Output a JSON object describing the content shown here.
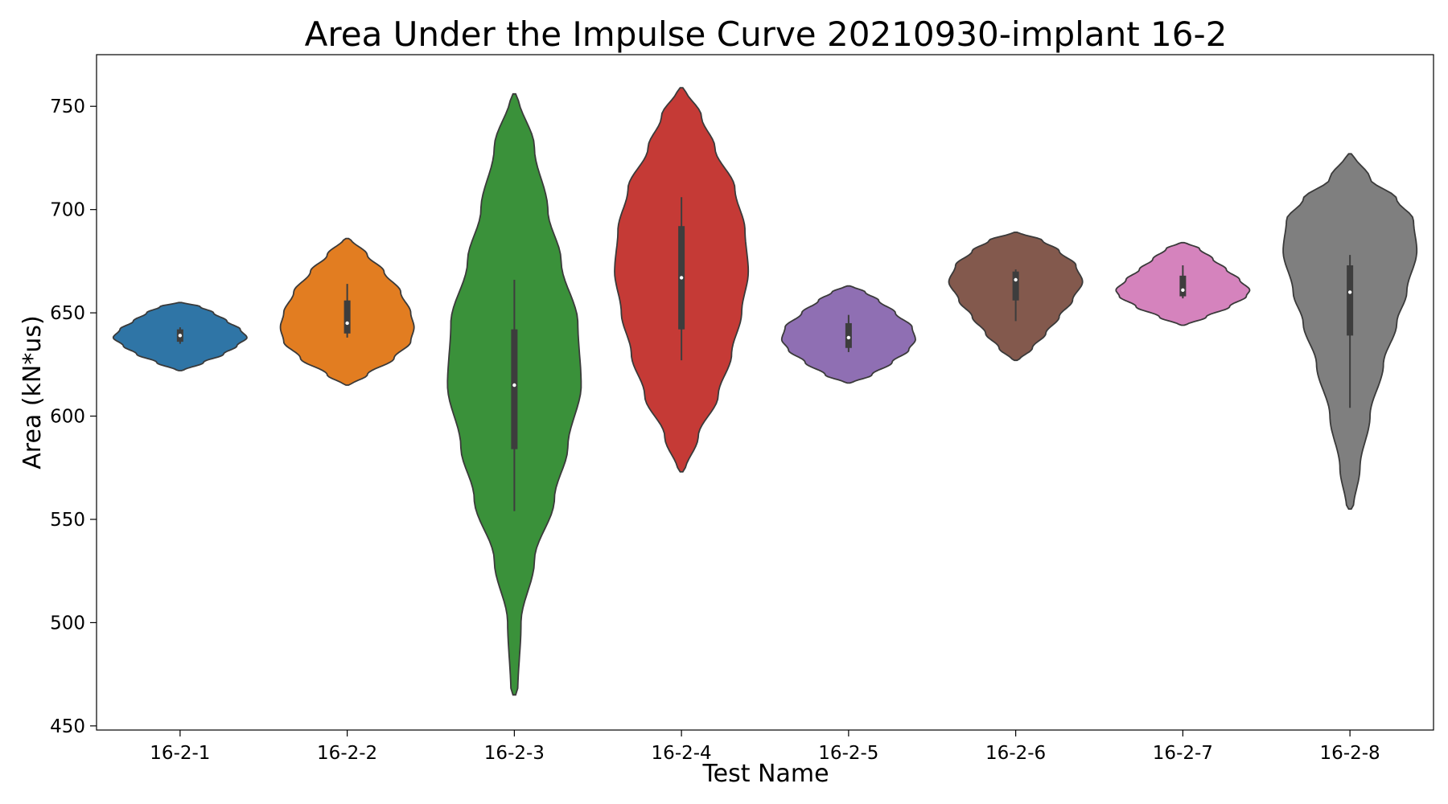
{
  "chart_data": {
    "type": "violin",
    "title": "Area Under the Impulse Curve 20210930-implant 16-2",
    "xlabel": "Test Name",
    "ylabel": "Area (kN*us)",
    "ylim": [
      448,
      775
    ],
    "yticks": [
      450,
      500,
      550,
      600,
      650,
      700,
      750
    ],
    "grid": false,
    "categories": [
      "16-2-1",
      "16-2-2",
      "16-2-3",
      "16-2-4",
      "16-2-5",
      "16-2-6",
      "16-2-7",
      "16-2-8"
    ],
    "series": [
      {
        "category": "16-2-1",
        "color": "#2f75a6",
        "min": 622,
        "max": 655,
        "q1": 636,
        "median": 639,
        "q3": 642,
        "whisker_low": 635,
        "whisker_high": 643,
        "profile": [
          [
            622,
            0.05
          ],
          [
            626,
            0.35
          ],
          [
            630,
            0.65
          ],
          [
            634,
            0.85
          ],
          [
            638,
            1.0
          ],
          [
            642,
            0.9
          ],
          [
            646,
            0.7
          ],
          [
            650,
            0.5
          ],
          [
            653,
            0.3
          ],
          [
            655,
            0.05
          ]
        ]
      },
      {
        "category": "16-2-2",
        "color": "#e27d21",
        "min": 615,
        "max": 686,
        "q1": 640,
        "median": 645,
        "q3": 656,
        "whisker_low": 638,
        "whisker_high": 664,
        "profile": [
          [
            615,
            0.05
          ],
          [
            620,
            0.3
          ],
          [
            628,
            0.7
          ],
          [
            636,
            0.95
          ],
          [
            643,
            1.0
          ],
          [
            650,
            0.95
          ],
          [
            660,
            0.8
          ],
          [
            670,
            0.55
          ],
          [
            678,
            0.3
          ],
          [
            686,
            0.05
          ]
        ]
      },
      {
        "category": "16-2-3",
        "color": "#3a913a",
        "min": 465,
        "max": 756,
        "q1": 584,
        "median": 615,
        "q3": 642,
        "whisker_low": 554,
        "whisker_high": 666,
        "profile": [
          [
            465,
            0.05
          ],
          [
            500,
            0.1
          ],
          [
            530,
            0.3
          ],
          [
            560,
            0.6
          ],
          [
            585,
            0.8
          ],
          [
            615,
            1.0
          ],
          [
            645,
            0.95
          ],
          [
            675,
            0.7
          ],
          [
            700,
            0.5
          ],
          [
            730,
            0.3
          ],
          [
            756,
            0.05
          ]
        ]
      },
      {
        "category": "16-2-4",
        "color": "#c53a36",
        "min": 573,
        "max": 759,
        "q1": 642,
        "median": 667,
        "q3": 692,
        "whisker_low": 627,
        "whisker_high": 706,
        "profile": [
          [
            573,
            0.05
          ],
          [
            590,
            0.25
          ],
          [
            610,
            0.55
          ],
          [
            630,
            0.75
          ],
          [
            650,
            0.9
          ],
          [
            670,
            1.0
          ],
          [
            690,
            0.95
          ],
          [
            710,
            0.8
          ],
          [
            730,
            0.5
          ],
          [
            745,
            0.3
          ],
          [
            759,
            0.05
          ]
        ]
      },
      {
        "category": "16-2-5",
        "color": "#8f6fb3",
        "min": 616,
        "max": 663,
        "q1": 633,
        "median": 638,
        "q3": 645,
        "whisker_low": 631,
        "whisker_high": 649,
        "profile": [
          [
            616,
            0.05
          ],
          [
            620,
            0.35
          ],
          [
            626,
            0.65
          ],
          [
            632,
            0.9
          ],
          [
            637,
            1.0
          ],
          [
            643,
            0.95
          ],
          [
            650,
            0.7
          ],
          [
            656,
            0.45
          ],
          [
            660,
            0.25
          ],
          [
            663,
            0.05
          ]
        ]
      },
      {
        "category": "16-2-6",
        "color": "#83594d",
        "min": 627,
        "max": 689,
        "q1": 656,
        "median": 666,
        "q3": 670,
        "whisker_low": 646,
        "whisker_high": 671,
        "profile": [
          [
            627,
            0.05
          ],
          [
            633,
            0.25
          ],
          [
            640,
            0.45
          ],
          [
            648,
            0.65
          ],
          [
            656,
            0.85
          ],
          [
            665,
            1.0
          ],
          [
            673,
            0.9
          ],
          [
            680,
            0.65
          ],
          [
            685,
            0.4
          ],
          [
            689,
            0.05
          ]
        ]
      },
      {
        "category": "16-2-7",
        "color": "#d583bd",
        "min": 644,
        "max": 684,
        "q1": 658,
        "median": 661,
        "q3": 668,
        "whisker_low": 657,
        "whisker_high": 673,
        "profile": [
          [
            644,
            0.05
          ],
          [
            648,
            0.35
          ],
          [
            653,
            0.7
          ],
          [
            658,
            0.95
          ],
          [
            661,
            1.0
          ],
          [
            666,
            0.85
          ],
          [
            671,
            0.65
          ],
          [
            676,
            0.45
          ],
          [
            681,
            0.25
          ],
          [
            684,
            0.05
          ]
        ]
      },
      {
        "category": "16-2-8",
        "color": "#7f7f7f",
        "min": 555,
        "max": 727,
        "q1": 639,
        "median": 660,
        "q3": 673,
        "whisker_low": 604,
        "whisker_high": 678,
        "profile": [
          [
            555,
            0.05
          ],
          [
            575,
            0.15
          ],
          [
            600,
            0.3
          ],
          [
            625,
            0.5
          ],
          [
            645,
            0.7
          ],
          [
            660,
            0.85
          ],
          [
            680,
            1.0
          ],
          [
            695,
            0.95
          ],
          [
            705,
            0.7
          ],
          [
            715,
            0.3
          ],
          [
            727,
            0.05
          ]
        ]
      }
    ]
  }
}
